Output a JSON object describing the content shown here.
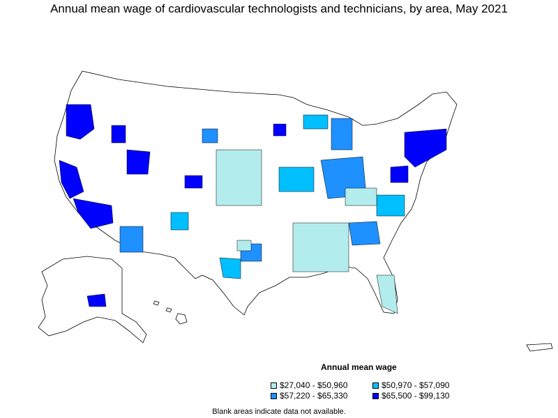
{
  "title": "Annual mean wage of cardiovascular technologists and technicians, by area, May 2021",
  "legend": {
    "title": "Annual mean wage",
    "items": [
      {
        "label": "$27,040 - $50,960",
        "color": "#b3ecec"
      },
      {
        "label": "$50,970 - $57,090",
        "color": "#00bfff"
      },
      {
        "label": "$57,220 - $65,330",
        "color": "#1e90ff"
      },
      {
        "label": "$65,500 - $99,130",
        "color": "#0000ff"
      }
    ]
  },
  "footnote": "Blank areas indicate data not available."
}
